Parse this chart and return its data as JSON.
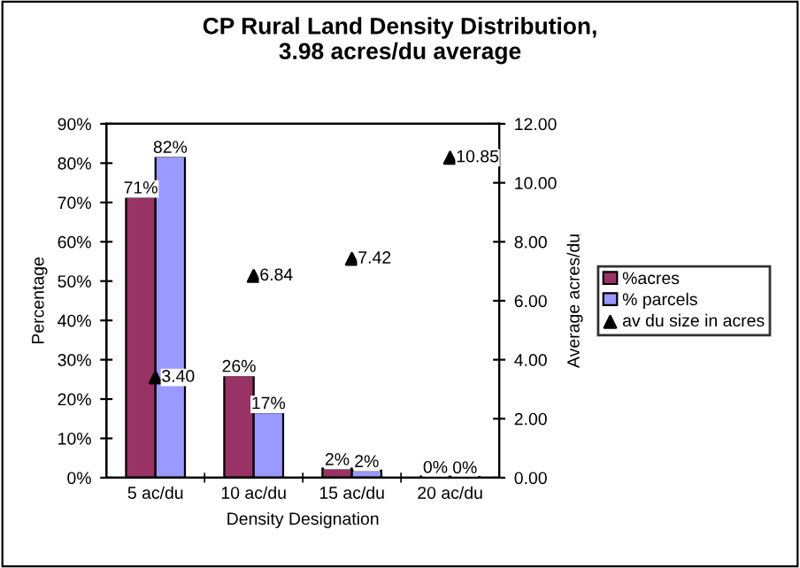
{
  "chart_data": {
    "type": "bar",
    "title": "CP Rural Land Density Distribution,\n3.98 acres/du average",
    "xlabel": "Density Designation",
    "ylabel": "Percentage",
    "y2label": "Average acres/du",
    "categories": [
      "5 ac/du",
      "10 ac/du",
      "15 ac/du",
      "20 ac/du"
    ],
    "series": [
      {
        "name": "%acres",
        "color": "#993366",
        "values": [
          71.4,
          26,
          2.3,
          0.3
        ],
        "value_labels": [
          "71%",
          "26%",
          "2%",
          "0%"
        ]
      },
      {
        "name": "% parcels",
        "color": "#9999ff",
        "values": [
          81.7,
          16.6,
          1.8,
          0.2
        ],
        "value_labels": [
          "82%",
          "17%",
          "2%",
          "0%"
        ]
      },
      {
        "name": "av du size in acres",
        "type": "scatter",
        "axis": "y2",
        "color": "#000000",
        "marker": "triangle",
        "values": [
          3.4,
          6.84,
          7.42,
          10.85
        ],
        "value_labels": [
          "3.40",
          "6.84",
          "7.42",
          "10.85"
        ]
      }
    ],
    "ylim": [
      0,
      90
    ],
    "yticks": [
      {
        "value": 0,
        "label": "0%"
      },
      {
        "value": 10,
        "label": "10%"
      },
      {
        "value": 20,
        "label": "20%"
      },
      {
        "value": 30,
        "label": "30%"
      },
      {
        "value": 40,
        "label": "40%"
      },
      {
        "value": 50,
        "label": "50%"
      },
      {
        "value": 60,
        "label": "60%"
      },
      {
        "value": 70,
        "label": "70%"
      },
      {
        "value": 80,
        "label": "80%"
      },
      {
        "value": 90,
        "label": "90%"
      }
    ],
    "y2lim": [
      0,
      12
    ],
    "y2ticks": [
      {
        "value": 0,
        "label": "0.00"
      },
      {
        "value": 2,
        "label": "2.00"
      },
      {
        "value": 4,
        "label": "4.00"
      },
      {
        "value": 6,
        "label": "6.00"
      },
      {
        "value": 8,
        "label": "8.00"
      },
      {
        "value": 10,
        "label": "10.00"
      },
      {
        "value": 12,
        "label": "12.00"
      }
    ],
    "grid": false,
    "legend": "right"
  }
}
